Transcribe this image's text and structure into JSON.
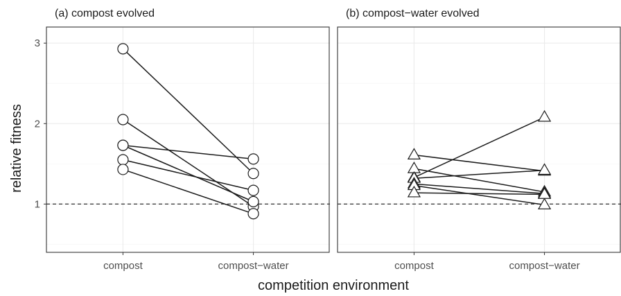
{
  "chart_data": {
    "type": "line",
    "ylabel": "relative fitness",
    "xlabel": "competition environment",
    "categories": [
      "compost",
      "compost−water"
    ],
    "ylim": [
      0.4,
      3.2
    ],
    "yticks": [
      1,
      2,
      3
    ],
    "reference_line": {
      "y": 1,
      "style": "dashed"
    },
    "grid": true,
    "panels": [
      {
        "title": "(a) compost evolved",
        "marker": "circle",
        "series": [
          {
            "values": [
              2.93,
              1.38
            ]
          },
          {
            "values": [
              2.05,
              0.97
            ]
          },
          {
            "values": [
              1.73,
              1.56
            ]
          },
          {
            "values": [
              1.73,
              1.03
            ]
          },
          {
            "values": [
              1.55,
              1.17
            ]
          },
          {
            "values": [
              1.43,
              0.88
            ]
          }
        ]
      },
      {
        "title": "(b) compost−water evolved",
        "marker": "triangle",
        "series": [
          {
            "values": [
              1.33,
              2.08
            ]
          },
          {
            "values": [
              1.61,
              1.41
            ]
          },
          {
            "values": [
              1.44,
              1.15
            ]
          },
          {
            "values": [
              1.32,
              1.42
            ]
          },
          {
            "values": [
              1.25,
              1.13
            ]
          },
          {
            "values": [
              1.23,
              0.99
            ]
          },
          {
            "values": [
              1.14,
              1.12
            ]
          }
        ]
      }
    ]
  }
}
